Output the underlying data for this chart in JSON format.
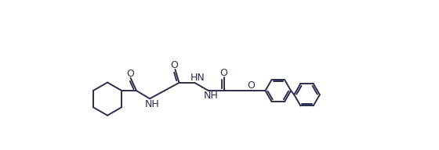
{
  "line_color": "#2d2d4e",
  "bg_color": "#ffffff",
  "line_width": 1.4,
  "figsize": [
    5.6,
    1.92
  ],
  "dpi": 100,
  "xlim": [
    0,
    11
  ],
  "ylim": [
    -2.8,
    2.8
  ]
}
